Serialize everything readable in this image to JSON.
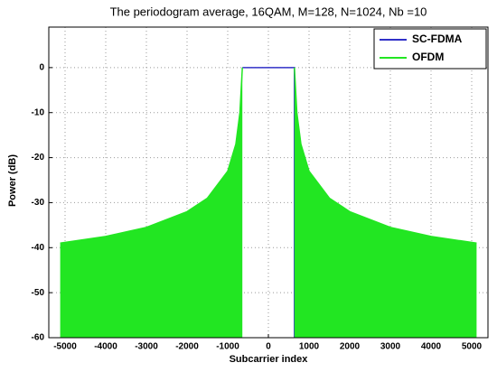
{
  "chart_data": {
    "type": "line",
    "title": "The periodogram average, 16QAM, M=128, N=1024, Nb =10",
    "x_label": "Subcarrier index",
    "y_label": "Power (dB)",
    "xlim": [
      -5400,
      5400
    ],
    "ylim": [
      -60,
      9
    ],
    "xticks": [
      -5000,
      -4000,
      -3000,
      -2000,
      -1000,
      0,
      1000,
      2000,
      3000,
      4000,
      5000
    ],
    "yticks": [
      -60,
      -50,
      -40,
      -30,
      -20,
      -10,
      0
    ],
    "grid": true,
    "legend": "upper right",
    "series": [
      {
        "name": "SC-FDMA",
        "color": "#3030c8",
        "fill": false,
        "x": [
          -640,
          640,
          640
        ],
        "values": [
          0,
          0,
          -60
        ]
      },
      {
        "name": "OFDM",
        "color": "#22e622",
        "fill": true,
        "x": [
          -5120,
          -4000,
          -3000,
          -2000,
          -1500,
          -1000,
          -800,
          -700,
          -640,
          0,
          640,
          700,
          800,
          1000,
          1500,
          2000,
          3000,
          4000,
          5120
        ],
        "values": [
          -39,
          -37.5,
          -35.5,
          -32,
          -29,
          -23,
          -17,
          -10,
          0,
          null,
          0,
          -10,
          -17,
          -23,
          -29,
          -32,
          -35.5,
          -37.5,
          -39
        ]
      }
    ]
  }
}
